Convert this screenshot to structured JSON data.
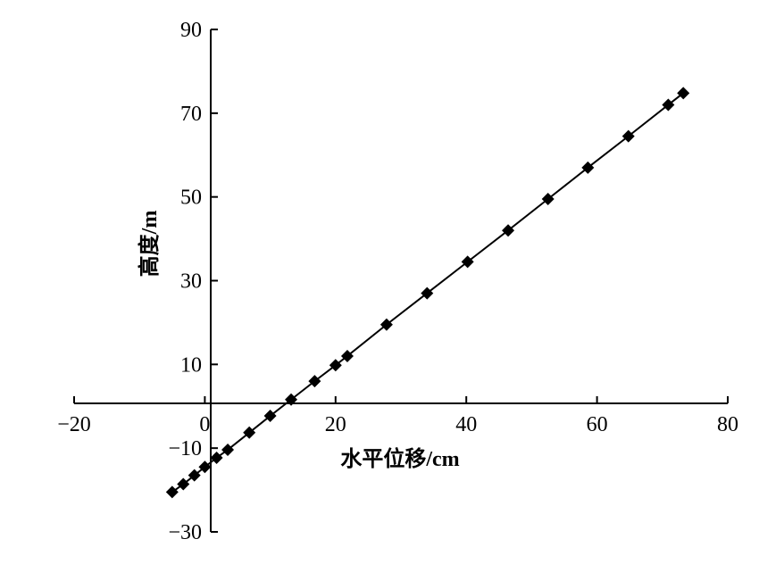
{
  "chart_data": {
    "type": "line",
    "xlabel": "水平位移/cm",
    "ylabel": "高度/m",
    "xlim": [
      -20,
      80
    ],
    "ylim": [
      -30,
      90
    ],
    "x_ticks": [
      -20,
      0,
      20,
      40,
      60,
      80
    ],
    "y_ticks": [
      -30,
      -10,
      10,
      30,
      50,
      70,
      90
    ],
    "x_tick_labels": [
      "−20",
      "0",
      "20",
      "40",
      "60",
      "80"
    ],
    "y_tick_labels": [
      "−30",
      "−10",
      "10",
      "30",
      "50",
      "70",
      "90"
    ],
    "grid": false,
    "legend": "none",
    "series": [
      {
        "marker": "diamond",
        "color": "#000000",
        "x": [
          -5.0,
          -3.3,
          -1.6,
          0.0,
          1.8,
          3.5,
          6.8,
          10.0,
          13.2,
          16.8,
          20.0,
          21.8,
          27.8,
          34.0,
          40.2,
          46.4,
          52.5,
          58.6,
          64.8,
          70.9,
          73.2
        ],
        "y": [
          -20.5,
          -18.6,
          -16.5,
          -14.5,
          -12.3,
          -10.4,
          -6.3,
          -2.3,
          1.6,
          6.0,
          9.8,
          12.0,
          19.5,
          27.0,
          34.5,
          42.0,
          49.5,
          57.0,
          64.5,
          72.0,
          74.8
        ]
      }
    ]
  }
}
